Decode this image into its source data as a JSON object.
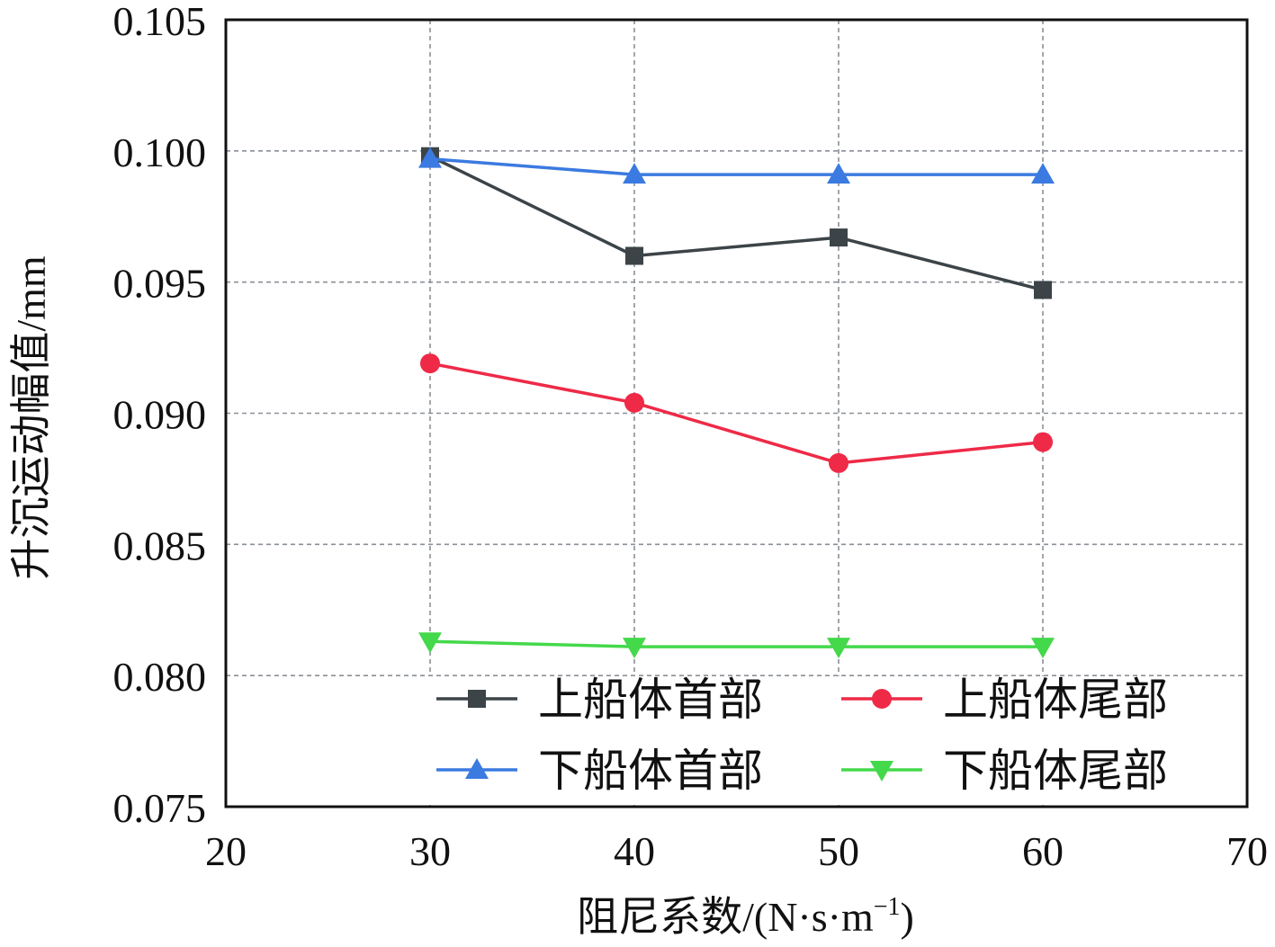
{
  "chart_data": {
    "type": "line",
    "xlabel_main": "阻尼系数/(N·s·m",
    "xlabel_sup": "−1",
    "xlabel_close": ")",
    "ylabel": "升沉运动幅值/mm",
    "xlim": [
      20,
      70
    ],
    "ylim": [
      0.075,
      0.105
    ],
    "xticks": [
      "20",
      "30",
      "40",
      "50",
      "60",
      "70"
    ],
    "yticks": [
      "0.075",
      "0.080",
      "0.085",
      "0.090",
      "0.095",
      "0.100",
      "0.105"
    ],
    "grid": true,
    "legend_position": "bottom-right",
    "x": [
      30,
      40,
      50,
      60
    ],
    "series": [
      {
        "name": "上船体首部",
        "marker": "square",
        "color": "#3c4448",
        "values": [
          0.0998,
          0.096,
          0.0967,
          0.0947
        ]
      },
      {
        "name": "上船体尾部",
        "marker": "circle",
        "color": "#ee2a47",
        "values": [
          0.0919,
          0.0904,
          0.0881,
          0.0889
        ]
      },
      {
        "name": "下船体首部",
        "marker": "triangle-up",
        "color": "#3b7ae0",
        "values": [
          0.0997,
          0.0991,
          0.0991,
          0.0991
        ]
      },
      {
        "name": "下船体尾部",
        "marker": "triangle-down",
        "color": "#44d84b",
        "values": [
          0.0813,
          0.0811,
          0.0811,
          0.0811
        ]
      }
    ]
  }
}
